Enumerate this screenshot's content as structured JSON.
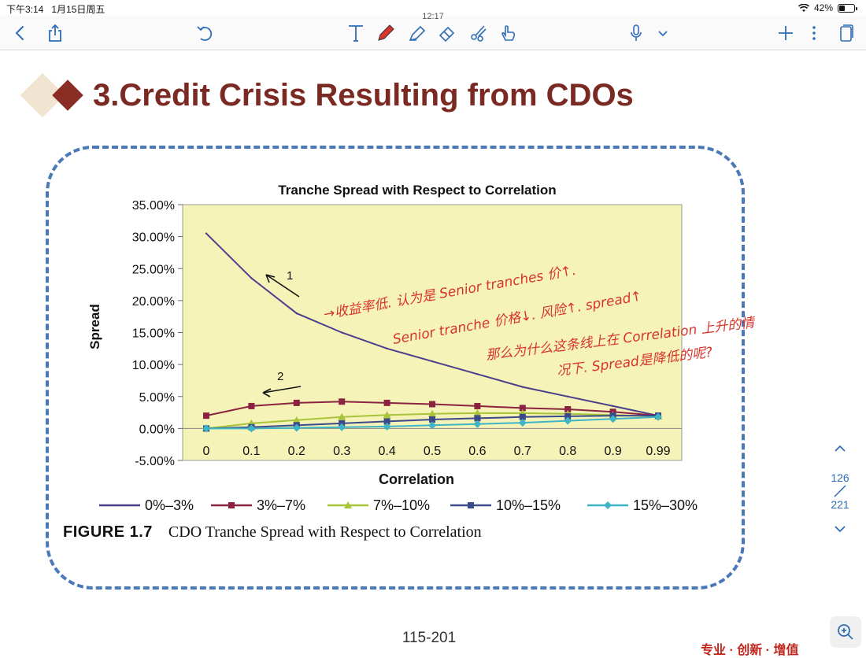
{
  "status_bar": {
    "time": "下午3:14",
    "date": "1月15日周五",
    "battery": "42%",
    "battery_level": 0.42
  },
  "toolbar": {
    "clock": "12:17",
    "icons": [
      "back-icon",
      "share-icon",
      "undo-icon",
      "text-tool-icon",
      "pen-icon",
      "highlighter-icon",
      "eraser-icon",
      "lasso-icon",
      "hand-icon",
      "mic-icon",
      "chevron-down-icon",
      "add-icon",
      "more-icon",
      "pages-icon"
    ]
  },
  "slide": {
    "title": "3.Credit Crisis Resulting from CDOs",
    "figure_label": "FIGURE 1.7",
    "figure_caption": "CDO Tranche Spread with Respect to Correlation",
    "page_footer": "115-201",
    "corner_text": "专业 · 创新 · 增值",
    "colors": {
      "title": "#7a2a22",
      "frame": "#4a78b8",
      "plot_bg": "#f5f3b8",
      "handwriting": "#d8342b"
    }
  },
  "pager": {
    "current": "126",
    "total": "221"
  },
  "annotations": {
    "arrow_1_label": "1",
    "arrow_2_label": "2",
    "line1": "→收益率低. 认为是 Senior tranches 价↑.",
    "line2": "Senior tranche 价格↓. 风险↑. spread↑",
    "line3": "那么为什么这条线上在 Correlation 上升的情",
    "line4": "况下. Spread是降低的呢?"
  },
  "chart_data": {
    "type": "line",
    "title": "Tranche Spread with Respect to Correlation",
    "xlabel": "Correlation",
    "ylabel": "Spread",
    "categories": [
      "0",
      "0.1",
      "0.2",
      "0.3",
      "0.4",
      "0.5",
      "0.6",
      "0.7",
      "0.8",
      "0.9",
      "0.99"
    ],
    "ylim": [
      -5,
      35
    ],
    "y_ticks": [
      "-5.00%",
      "0.00%",
      "5.00%",
      "10.00%",
      "15.00%",
      "20.00%",
      "25.00%",
      "30.00%",
      "35.00%"
    ],
    "legend_position": "bottom",
    "series": [
      {
        "name": "0%–3%",
        "color": "#4b3f8c",
        "marker": "none",
        "values": [
          30.5,
          23.5,
          18.0,
          15.0,
          12.5,
          10.5,
          8.5,
          6.5,
          5.0,
          3.5,
          2.0
        ]
      },
      {
        "name": "3%–7%",
        "color": "#8b2340",
        "marker": "square",
        "values": [
          2.0,
          3.5,
          4.0,
          4.2,
          4.0,
          3.8,
          3.5,
          3.2,
          3.0,
          2.6,
          2.0
        ]
      },
      {
        "name": "7%–10%",
        "color": "#a8c43a",
        "marker": "triangle",
        "values": [
          0.0,
          0.8,
          1.3,
          1.8,
          2.1,
          2.3,
          2.4,
          2.4,
          2.3,
          2.1,
          1.9
        ]
      },
      {
        "name": "10%–15%",
        "color": "#3b4a8a",
        "marker": "square",
        "values": [
          0.0,
          0.2,
          0.5,
          0.8,
          1.1,
          1.4,
          1.6,
          1.8,
          1.9,
          2.0,
          2.0
        ]
      },
      {
        "name": "15%–30%",
        "color": "#3fb4c4",
        "marker": "diamond",
        "values": [
          0.0,
          0.0,
          0.1,
          0.2,
          0.3,
          0.5,
          0.7,
          0.9,
          1.2,
          1.5,
          1.8
        ]
      }
    ]
  }
}
